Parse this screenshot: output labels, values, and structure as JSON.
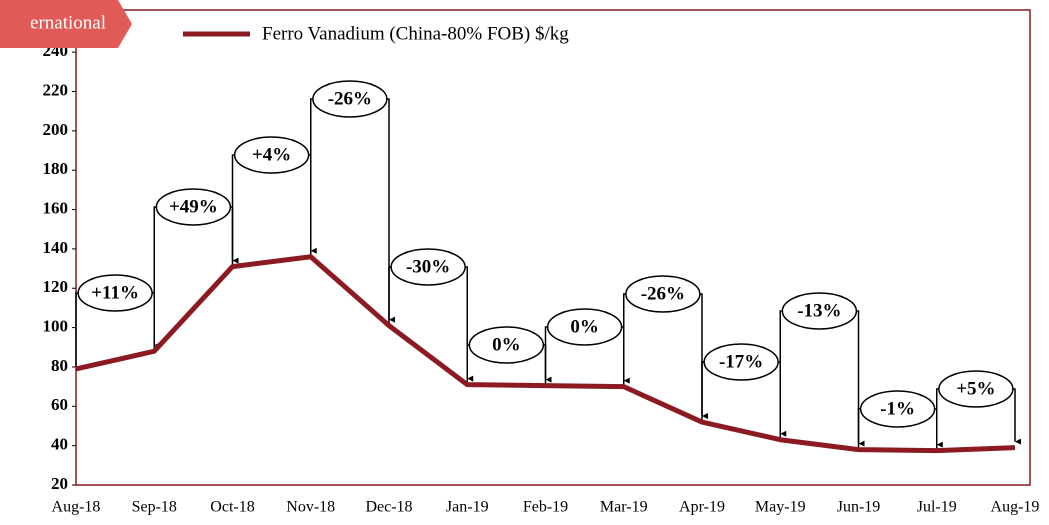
{
  "chart_data": {
    "type": "line",
    "badge": "ernational",
    "categories": [
      "Aug-18",
      "Sep-18",
      "Oct-18",
      "Nov-18",
      "Dec-18",
      "Jan-19",
      "Feb-19",
      "Mar-19",
      "Apr-19",
      "May-19",
      "Jun-19",
      "Jul-19",
      "Aug-19"
    ],
    "series": [
      {
        "name": "Ferro Vanadium (China-80% FOB) $/kg",
        "color": "#8b1a22",
        "values": [
          79,
          88,
          131,
          136,
          101,
          71,
          70.5,
          70,
          52,
          43,
          38,
          37.5,
          39
        ]
      }
    ],
    "annotations": [
      "+11%",
      "+49%",
      "+4%",
      "-26%",
      "-30%",
      "0%",
      "0%",
      "-26%",
      "-17%",
      "-13%",
      "-1%",
      "+5%"
    ],
    "ylim": [
      20,
      260
    ],
    "yticks": [
      20,
      40,
      60,
      80,
      100,
      120,
      140,
      160,
      180,
      200,
      220,
      240
    ],
    "legend": "top"
  }
}
